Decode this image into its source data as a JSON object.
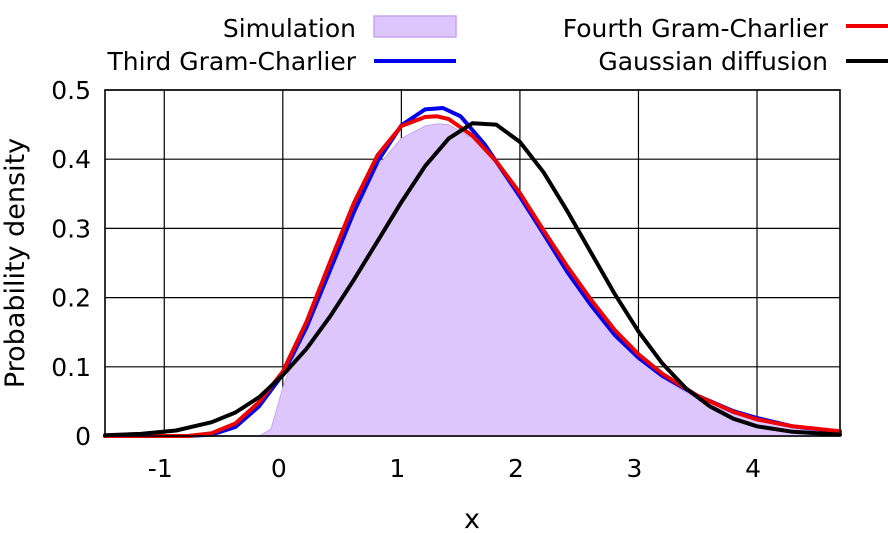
{
  "chart_data": {
    "type": "line",
    "xlabel": "x",
    "ylabel": "Probability density",
    "xlim": [
      -1.5,
      4.7
    ],
    "ylim": [
      0,
      0.5
    ],
    "xticks": [
      -1,
      0,
      1,
      2,
      3,
      4
    ],
    "xtick_labels": [
      "-1",
      "0",
      "1",
      "2",
      "3",
      "4"
    ],
    "yticks": [
      0,
      0.1,
      0.2,
      0.3,
      0.4,
      0.5
    ],
    "ytick_labels": [
      "0",
      "0.1",
      "0.2",
      "0.3",
      "0.4",
      "0.5"
    ],
    "grid": true,
    "legend": "top",
    "series": [
      {
        "name": "Simulation",
        "style": "area",
        "color": "#dcc6fb",
        "edge_color": "#c7a4f3",
        "x": [
          -0.2,
          -0.1,
          0.0,
          0.2,
          0.4,
          0.6,
          0.8,
          1.0,
          1.2,
          1.3,
          1.4,
          1.6,
          1.8,
          2.0,
          2.2,
          2.4,
          2.6,
          2.8,
          3.0,
          3.2,
          3.4,
          3.6,
          3.8,
          4.0,
          4.2,
          4.4,
          4.7
        ],
        "y": [
          0.0,
          0.01,
          0.07,
          0.16,
          0.24,
          0.32,
          0.39,
          0.43,
          0.448,
          0.451,
          0.45,
          0.43,
          0.393,
          0.353,
          0.298,
          0.247,
          0.195,
          0.151,
          0.115,
          0.084,
          0.063,
          0.045,
          0.032,
          0.023,
          0.015,
          0.009,
          0.0
        ]
      },
      {
        "name": "Third Gram-Charlier",
        "style": "line",
        "color": "#0000ee",
        "x": [
          -1.5,
          -0.8,
          -0.6,
          -0.4,
          -0.2,
          0.0,
          0.2,
          0.4,
          0.6,
          0.8,
          1.0,
          1.2,
          1.35,
          1.5,
          1.7,
          2.0,
          2.2,
          2.4,
          2.6,
          2.8,
          3.0,
          3.2,
          3.5,
          3.8,
          4.0,
          4.3,
          4.7
        ],
        "y": [
          0.0,
          0.0,
          0.002,
          0.013,
          0.043,
          0.089,
          0.157,
          0.24,
          0.324,
          0.397,
          0.449,
          0.472,
          0.474,
          0.462,
          0.422,
          0.346,
          0.292,
          0.237,
          0.189,
          0.146,
          0.113,
          0.087,
          0.058,
          0.036,
          0.026,
          0.014,
          0.006
        ]
      },
      {
        "name": "Fourth Gram-Charlier",
        "style": "line",
        "color": "#ee0000",
        "x": [
          -1.5,
          -0.8,
          -0.6,
          -0.4,
          -0.2,
          0.0,
          0.2,
          0.4,
          0.6,
          0.8,
          1.0,
          1.2,
          1.3,
          1.4,
          1.6,
          1.8,
          2.0,
          2.2,
          2.4,
          2.6,
          2.8,
          3.0,
          3.2,
          3.5,
          3.8,
          4.0,
          4.3,
          4.7
        ],
        "y": [
          0.0,
          0.0,
          0.004,
          0.018,
          0.049,
          0.093,
          0.165,
          0.252,
          0.337,
          0.406,
          0.448,
          0.461,
          0.462,
          0.458,
          0.434,
          0.397,
          0.351,
          0.297,
          0.245,
          0.197,
          0.153,
          0.118,
          0.09,
          0.058,
          0.035,
          0.024,
          0.014,
          0.007
        ]
      },
      {
        "name": "Gaussian diffusion",
        "style": "line",
        "color": "#000000",
        "x": [
          -1.5,
          -1.2,
          -0.9,
          -0.6,
          -0.4,
          -0.2,
          0.0,
          0.2,
          0.4,
          0.6,
          0.8,
          1.0,
          1.2,
          1.4,
          1.6,
          1.8,
          2.0,
          2.2,
          2.4,
          2.6,
          2.8,
          3.0,
          3.2,
          3.4,
          3.6,
          3.8,
          4.0,
          4.3,
          4.7
        ],
        "y": [
          0.001,
          0.003,
          0.008,
          0.02,
          0.034,
          0.056,
          0.088,
          0.126,
          0.173,
          0.226,
          0.282,
          0.338,
          0.39,
          0.43,
          0.452,
          0.45,
          0.425,
          0.381,
          0.325,
          0.265,
          0.205,
          0.151,
          0.105,
          0.069,
          0.043,
          0.025,
          0.014,
          0.006,
          0.002
        ]
      }
    ]
  },
  "legend": {
    "left_column": [
      "Simulation",
      "Third Gram-Charlier"
    ],
    "right_column": [
      "Fourth Gram-Charlier",
      "Gaussian diffusion"
    ]
  }
}
